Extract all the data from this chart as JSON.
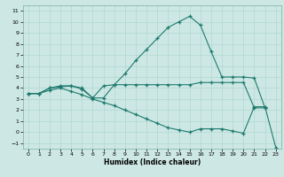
{
  "xlabel": "Humidex (Indice chaleur)",
  "bg_color": "#cde8e4",
  "grid_color": "#b0d8d0",
  "line_color": "#1e7a6e",
  "xlim": [
    -0.5,
    23.5
  ],
  "ylim": [
    -1.5,
    11.5
  ],
  "xticks": [
    0,
    1,
    2,
    3,
    4,
    5,
    6,
    7,
    8,
    9,
    10,
    11,
    12,
    13,
    14,
    15,
    16,
    17,
    18,
    19,
    20,
    21,
    22,
    23
  ],
  "yticks": [
    -1,
    0,
    1,
    2,
    3,
    4,
    5,
    6,
    7,
    8,
    9,
    10,
    11
  ],
  "series1_x": [
    0,
    1,
    2,
    3,
    4,
    5,
    6,
    7,
    8,
    9,
    10,
    11,
    12,
    13,
    14,
    15,
    16,
    17,
    18,
    19,
    20,
    21,
    22
  ],
  "series1_y": [
    3.5,
    3.5,
    4.0,
    4.1,
    4.2,
    4.0,
    3.1,
    3.1,
    4.3,
    5.3,
    6.5,
    7.5,
    8.5,
    9.5,
    10.0,
    10.5,
    9.7,
    7.3,
    5.0,
    5.0,
    5.0,
    4.9,
    2.2
  ],
  "series2_x": [
    0,
    1,
    2,
    3,
    4,
    5,
    6,
    7,
    8,
    9,
    10,
    11,
    12,
    13,
    14,
    15,
    16,
    17,
    18,
    19,
    20,
    21,
    22
  ],
  "series2_y": [
    3.5,
    3.5,
    4.0,
    4.2,
    4.2,
    3.9,
    3.1,
    4.2,
    4.3,
    4.3,
    4.3,
    4.3,
    4.3,
    4.3,
    4.3,
    4.3,
    4.5,
    4.5,
    4.5,
    4.5,
    4.5,
    2.2,
    2.2
  ],
  "series3_x": [
    0,
    1,
    2,
    3,
    4,
    5,
    6,
    7,
    8,
    9,
    10,
    11,
    12,
    13,
    14,
    15,
    16,
    17,
    18,
    19,
    20,
    21,
    22,
    23
  ],
  "series3_y": [
    3.5,
    3.5,
    3.8,
    4.0,
    3.7,
    3.4,
    3.0,
    2.7,
    2.4,
    2.0,
    1.6,
    1.2,
    0.8,
    0.4,
    0.2,
    0.0,
    0.3,
    0.3,
    0.3,
    0.1,
    -0.1,
    2.3,
    2.3,
    -1.4
  ]
}
